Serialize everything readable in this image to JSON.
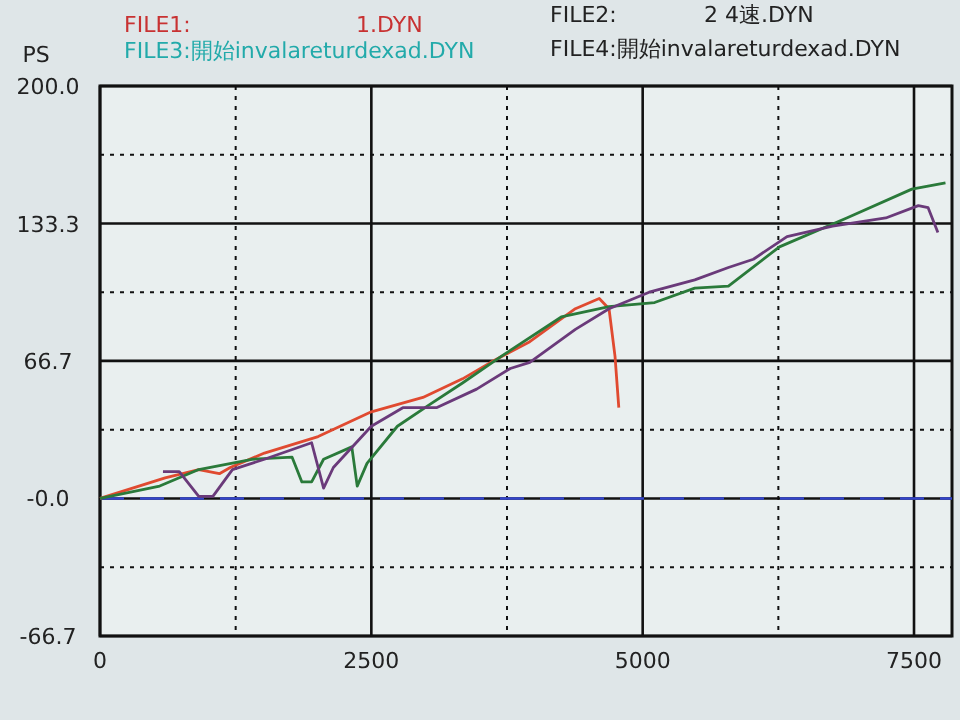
{
  "chart_data": {
    "type": "line",
    "ylabel": "PS",
    "annotations": [
      "FILE1:",
      "1.DYN",
      "FILE2:",
      "2 4速.DYN",
      "FILE3:開始invalareturdexad.DYN",
      "FILE4:開始invalareturdexad.DYN"
    ],
    "xlim": [
      0,
      7850
    ],
    "ylim": [
      -66.7,
      200
    ],
    "xticks": [
      0,
      2500,
      5000,
      7500
    ],
    "yticks": [
      {
        "value": 200,
        "label": "200.0"
      },
      {
        "value": 133.3,
        "label": "133.3"
      },
      {
        "value": 66.7,
        "label": "66.7"
      },
      {
        "value": 0,
        "label": "-0.0"
      },
      {
        "value": -66.7,
        "label": "-66.7"
      }
    ],
    "grid": true,
    "ref_lines": [
      {
        "axis": "y",
        "value": 0,
        "color": "#3344cc",
        "line_style": "dashed"
      }
    ],
    "series": [
      {
        "color": "#e04a30",
        "x": [
          0,
          600,
          910,
          1100,
          1200,
          1515,
          2010,
          2500,
          2975,
          3340,
          3600,
          3960,
          4380,
          4600,
          4690,
          4745,
          4780
        ],
        "values": [
          0,
          10,
          14,
          12,
          15,
          22,
          30,
          42,
          49,
          58,
          66,
          76,
          92,
          97,
          92,
          69,
          44
        ]
      },
      {
        "color": "#2a7a3a",
        "x": [
          0,
          550,
          910,
          1400,
          1770,
          1860,
          1950,
          2060,
          2320,
          2370,
          2460,
          2740,
          3050,
          3340,
          3700,
          4250,
          4690,
          5110,
          5480,
          5790,
          6260,
          6880,
          7480,
          7790
        ],
        "values": [
          0,
          6,
          14,
          19,
          20,
          8,
          8,
          19,
          25,
          6,
          17,
          35,
          46,
          56,
          69,
          88,
          93,
          95,
          102,
          103,
          122,
          136,
          150,
          153
        ]
      },
      {
        "color": "#6a3a7a",
        "x": [
          580,
          730,
          910,
          1040,
          1220,
          1515,
          1950,
          2060,
          2150,
          2500,
          2790,
          3100,
          3470,
          3780,
          3960,
          4380,
          4690,
          5060,
          5480,
          5790,
          6020,
          6330,
          6750,
          7240,
          7540,
          7630,
          7720
        ],
        "values": [
          13,
          13,
          1,
          1,
          14,
          19,
          27,
          5,
          15,
          35,
          44,
          44,
          53,
          63,
          66,
          82,
          92,
          100,
          106,
          112,
          116,
          127,
          132,
          136,
          142,
          141,
          129
        ]
      }
    ]
  }
}
